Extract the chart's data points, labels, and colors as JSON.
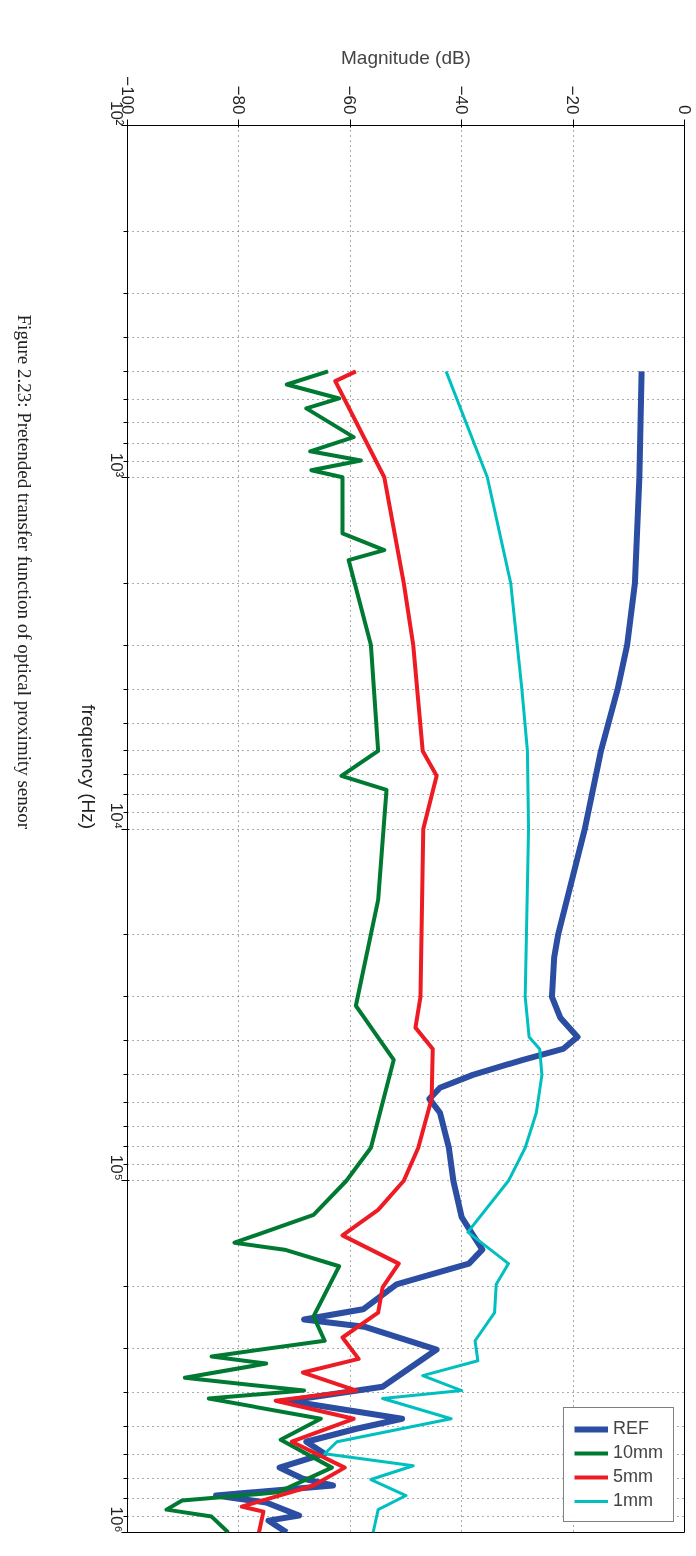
{
  "chart_data": {
    "type": "line",
    "xlabel": "Magnitude (dB)",
    "ylabel": "frequency (Hz)",
    "log": "y",
    "grid": true,
    "legend": "bottom right",
    "line_style": "solid",
    "ylim": [
      1000000,
      100
    ],
    "yticks": [
      {
        "value": 100,
        "label": "10²"
      },
      {
        "value": 1000,
        "label": "10³"
      },
      {
        "value": 10000,
        "label": "10⁴"
      },
      {
        "value": 100000,
        "label": "10⁵"
      },
      {
        "value": 1000000,
        "label": "10⁶"
      }
    ],
    "xlim": [
      -100,
      0
    ],
    "xticks": [
      {
        "value": -100,
        "label": "−100"
      },
      {
        "value": -80,
        "label": "−80"
      },
      {
        "value": -60,
        "label": "−60"
      },
      {
        "value": -40,
        "label": "−40"
      },
      {
        "value": -20,
        "label": "−20"
      },
      0
    ],
    "annotations": [
      "Figure 2.23: Pretended transfer function of optical proximity sensor"
    ],
    "series": [
      {
        "name": "REF",
        "color": "#2b4ea3",
        "values": [
          500,
          1000,
          2000,
          3000,
          4000,
          6000,
          10000,
          20000,
          23200,
          30000,
          34400,
          39000,
          42200,
          45300,
          50000,
          54400,
          58500,
          64100,
          80600,
          100000,
          127000,
          157000,
          172000,
          197000,
          232000,
          248000,
          260000,
          302000,
          385000,
          422000,
          475000,
          507000,
          552000,
          597000,
          654000,
          703000,
          735000,
          785000,
          822000,
          895000,
          925000,
          1000000
        ],
        "x": [
          -7.7,
          -8.1,
          -8.9,
          -10.3,
          -12,
          -15,
          -17.9,
          -22.7,
          -23.4,
          -23.8,
          -22.3,
          -19.2,
          -21.8,
          -29,
          -38,
          -43.9,
          -45.8,
          -43.9,
          -42.3,
          -41.5,
          -40,
          -36.3,
          -38.7,
          -51.7,
          -57.7,
          -68.3,
          -57.5,
          -44.5,
          -54.2,
          -71.2,
          -50.7,
          -58.9,
          -67.9,
          -64.6,
          -72.7,
          -68.5,
          -63.1,
          -84.1,
          -75.1,
          -69.2,
          -74.7,
          -71.4
        ]
      },
      {
        "name": "10mm",
        "color": "#007a33",
        "values": [
          500,
          545,
          597,
          637,
          769,
          844,
          896,
          955,
          1000,
          1443,
          1611,
          1720,
          3000,
          6000,
          7060,
          7740,
          15900,
          31800,
          45300,
          80600,
          100000,
          125000,
          150000,
          157000,
          175000,
          243000,
          285000,
          316000,
          331000,
          363000,
          395000,
          416000,
          475000,
          545000,
          654000,
          769000,
          811000,
          861000,
          901000,
          1000000
        ],
        "x": [
          -64,
          -71.4,
          -62,
          -67.9,
          -59.4,
          -67.2,
          -58.1,
          -67,
          -61.4,
          -61.4,
          -53.9,
          -60.3,
          -56.3,
          -55,
          -61.6,
          -53.5,
          -55,
          -59,
          -52.2,
          -56.3,
          -60.7,
          -66.6,
          -80.8,
          -71.8,
          -62,
          -66.6,
          -64.6,
          -84.9,
          -75.1,
          -89.7,
          -68.3,
          -85.4,
          -65.3,
          -72.5,
          -63.3,
          -73,
          -90.2,
          -93,
          -84.9,
          -81.9
        ]
      },
      {
        "name": "5mm",
        "color": "#ed1c24",
        "values": [
          500,
          533,
          1000,
          2000,
          3000,
          6000,
          7060,
          10000,
          30000,
          36700,
          42200,
          58500,
          80600,
          100000,
          121000,
          143000,
          172000,
          201000,
          237000,
          279000,
          321000,
          351000,
          395000,
          422000,
          475000,
          552000,
          654000,
          735000,
          844000,
          872000,
          1000000
        ],
        "x": [
          -59,
          -62.7,
          -53.9,
          -50.4,
          -48.7,
          -47,
          -44.5,
          -46.9,
          -47.4,
          -48.3,
          -45.2,
          -45.4,
          -47.8,
          -50.4,
          -55,
          -61.4,
          -51.3,
          -54.2,
          -55,
          -61.4,
          -58.5,
          -68.5,
          -58.9,
          -73.4,
          -59.4,
          -70.5,
          -61,
          -66.6,
          -79.5,
          -75.6,
          -76.4
        ]
      },
      {
        "name": "1mm",
        "color": "#00bfbf",
        "values": [
          500,
          1000,
          2000,
          4000,
          6000,
          10000,
          30000,
          39000,
          42200,
          50000,
          64100,
          80600,
          100000,
          140000,
          172000,
          197000,
          237000,
          285000,
          325000,
          358000,
          395000,
          416000,
          475000,
          552000,
          597000,
          646000,
          707000,
          785000,
          861000,
          1000000
        ],
        "x": [
          -42.8,
          -35.4,
          -31.2,
          -29.2,
          -28.2,
          -28,
          -28.6,
          -27.9,
          -26,
          -25.6,
          -26.6,
          -28.6,
          -31.6,
          -38.9,
          -31.6,
          -33.8,
          -34.1,
          -37.6,
          -37.1,
          -47,
          -40,
          -54.2,
          -41.9,
          -62.4,
          -64.6,
          -48.7,
          -56.3,
          -50,
          -55,
          -55.9
        ]
      }
    ]
  }
}
